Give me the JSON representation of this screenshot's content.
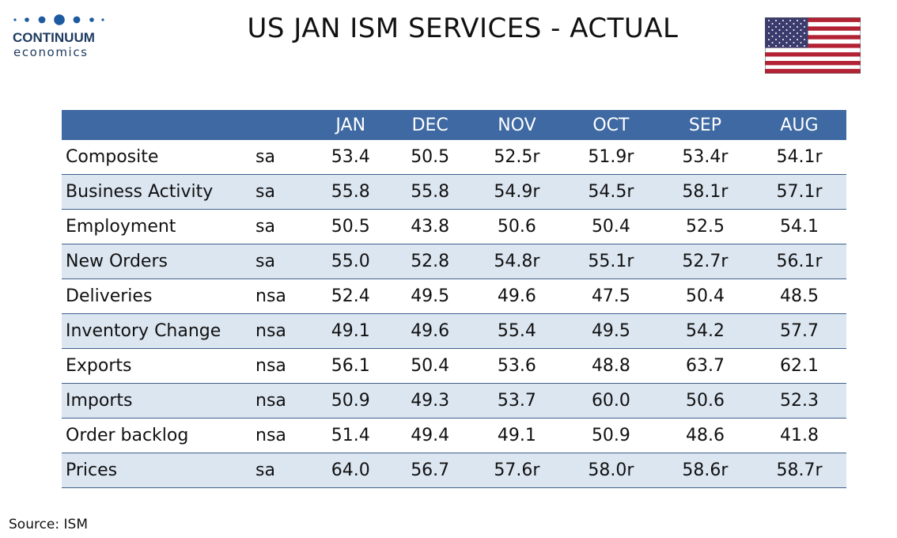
{
  "logo": {
    "name": "CONTINUUM",
    "sub": "economics",
    "icon": "dots-logo-icon"
  },
  "title": "US JAN ISM SERVICES - ACTUAL",
  "flag": {
    "icon": "us-flag-icon",
    "colors": {
      "red": "#b22234",
      "white": "#ffffff",
      "blue": "#3c3b6e"
    }
  },
  "colors": {
    "header_bg": "#3f69a2",
    "row_alt": "#dce6f1"
  },
  "source": "Source: ISM",
  "chart_data": {
    "type": "table",
    "title": "US JAN ISM SERVICES - ACTUAL",
    "columns": [
      "JAN",
      "DEC",
      "NOV",
      "OCT",
      "SEP",
      "AUG"
    ],
    "rows": [
      {
        "label": "Composite",
        "adj": "sa",
        "values": [
          "53.4",
          "50.5",
          "52.5r",
          "51.9r",
          "53.4r",
          "54.1r"
        ]
      },
      {
        "label": "Business Activity",
        "adj": "sa",
        "values": [
          "55.8",
          "55.8",
          "54.9r",
          "54.5r",
          "58.1r",
          "57.1r"
        ]
      },
      {
        "label": "Employment",
        "adj": "sa",
        "values": [
          "50.5",
          "43.8",
          "50.6",
          "50.4",
          "52.5",
          "54.1"
        ]
      },
      {
        "label": "New Orders",
        "adj": "sa",
        "values": [
          "55.0",
          "52.8",
          "54.8r",
          "55.1r",
          "52.7r",
          "56.1r"
        ]
      },
      {
        "label": "Deliveries",
        "adj": "nsa",
        "values": [
          "52.4",
          "49.5",
          "49.6",
          "47.5",
          "50.4",
          "48.5"
        ]
      },
      {
        "label": "Inventory Change",
        "adj": "nsa",
        "values": [
          "49.1",
          "49.6",
          "55.4",
          "49.5",
          "54.2",
          "57.7"
        ]
      },
      {
        "label": "Exports",
        "adj": "nsa",
        "values": [
          "56.1",
          "50.4",
          "53.6",
          "48.8",
          "63.7",
          "62.1"
        ]
      },
      {
        "label": "Imports",
        "adj": "nsa",
        "values": [
          "50.9",
          "49.3",
          "53.7",
          "60.0",
          "50.6",
          "52.3"
        ]
      },
      {
        "label": "Order backlog",
        "adj": "nsa",
        "values": [
          "51.4",
          "49.4",
          "49.1",
          "50.9",
          "48.6",
          "41.8"
        ]
      },
      {
        "label": "Prices",
        "adj": "sa",
        "values": [
          "64.0",
          "56.7",
          "57.6r",
          "58.0r",
          "58.6r",
          "58.7r"
        ]
      }
    ]
  }
}
